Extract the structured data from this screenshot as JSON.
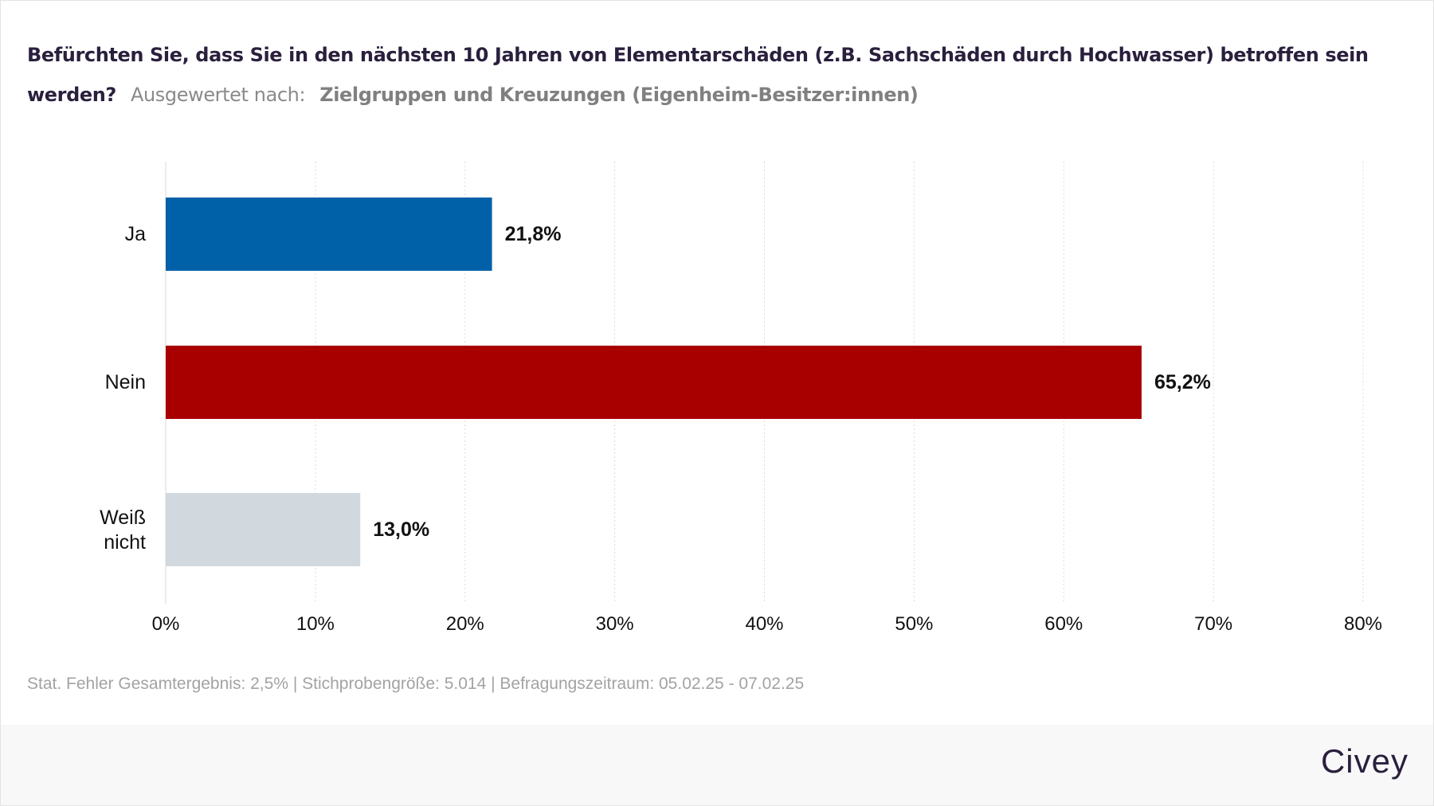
{
  "chart_data": {
    "type": "bar",
    "orientation": "horizontal",
    "title": "Befürchten Sie, dass Sie in den nächsten 10 Jahren von Elementarschäden (z.B. Sachschäden durch Hochwasser) betroffen sein werden?",
    "subtitle_label": "Ausgewertet nach:",
    "subtitle_value": "Zielgruppen und Kreuzungen (Eigenheim-Besitzer:innen)",
    "categories": [
      "Ja",
      "Nein",
      "Weiß nicht"
    ],
    "values": [
      21.8,
      65.2,
      13.0
    ],
    "value_labels": [
      "21,8%",
      "65,2%",
      "13,0%"
    ],
    "colors": [
      "#0060a8",
      "#a80000",
      "#d1d8de"
    ],
    "xlim": [
      0,
      80
    ],
    "xticks": [
      0,
      10,
      20,
      30,
      40,
      50,
      60,
      70,
      80
    ],
    "xtick_labels": [
      "0%",
      "10%",
      "20%",
      "30%",
      "40%",
      "50%",
      "60%",
      "70%",
      "80%"
    ],
    "grid": true,
    "xlabel": "",
    "ylabel": ""
  },
  "footer": "Stat. Fehler Gesamtergebnis: 2,5% | Stichprobengröße: 5.014 | Befragungszeitraum: 05.02.25 - 07.02.25",
  "logo": "Civey"
}
